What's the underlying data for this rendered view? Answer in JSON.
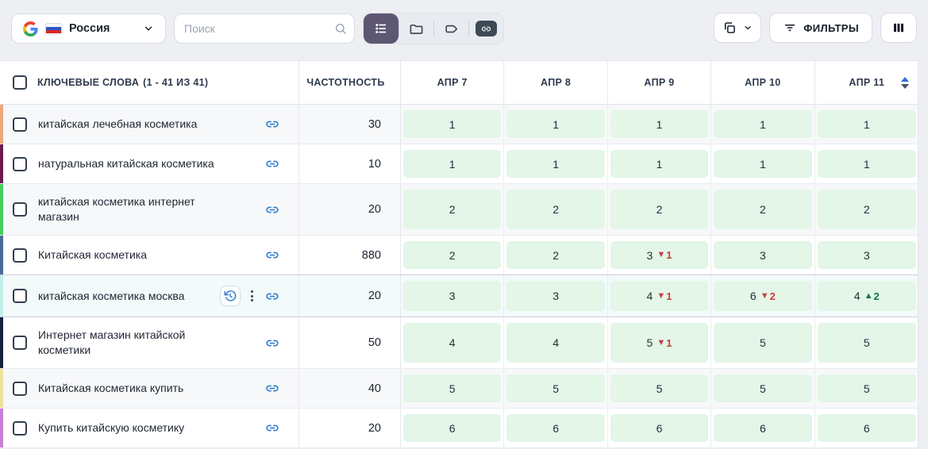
{
  "toolbar": {
    "region": {
      "label": "Россия",
      "engine": "google",
      "flag": "russia"
    },
    "search": {
      "placeholder": "Поиск"
    },
    "view_modes": [
      {
        "name": "list-view",
        "active": true
      },
      {
        "name": "folder-view",
        "active": false
      },
      {
        "name": "tag-view",
        "active": false
      },
      {
        "name": "link-view",
        "active": false
      }
    ],
    "copy_menu": {
      "icon": "copy-icon",
      "chevron": "chevron-down-icon"
    },
    "filters": {
      "label": "ФИЛЬТРЫ",
      "icon": "filter-icon"
    },
    "columns_button": {
      "icon": "columns-icon"
    }
  },
  "table": {
    "header": {
      "keywords": "КЛЮЧЕВЫЕ СЛОВА",
      "range": "(1 - 41 ИЗ 41)",
      "frequency": "ЧАСТОТНОСТЬ",
      "dates": [
        "АПР 7",
        "АПР 8",
        "АПР 9",
        "АПР 10",
        "АПР 11"
      ],
      "sort_icons": [
        "sort-up-icon",
        "sort-down-icon"
      ]
    },
    "rows": [
      {
        "keyword": "китайская лечебная косметика",
        "stripe": "#eda77c",
        "frequency": "30",
        "cells": [
          {
            "v": "1"
          },
          {
            "v": "1"
          },
          {
            "v": "1"
          },
          {
            "v": "1"
          },
          {
            "v": "1"
          }
        ]
      },
      {
        "keyword": "натуральная китайская косметика",
        "stripe": "#6d1b4f",
        "frequency": "10",
        "cells": [
          {
            "v": "1"
          },
          {
            "v": "1"
          },
          {
            "v": "1"
          },
          {
            "v": "1"
          },
          {
            "v": "1"
          }
        ]
      },
      {
        "keyword": "китайская косметика интернет магазин",
        "stripe": "#42d05e",
        "frequency": "20",
        "cells": [
          {
            "v": "2"
          },
          {
            "v": "2"
          },
          {
            "v": "2"
          },
          {
            "v": "2"
          },
          {
            "v": "2"
          }
        ]
      },
      {
        "keyword": "Китайская косметика",
        "stripe": "#4a6a96",
        "frequency": "880",
        "cells": [
          {
            "v": "2"
          },
          {
            "v": "2"
          },
          {
            "v": "3",
            "d": "1",
            "dir": "down"
          },
          {
            "v": "3"
          },
          {
            "v": "3"
          }
        ]
      },
      {
        "keyword": "китайская косметика москва",
        "stripe": "#c3efe9",
        "frequency": "20",
        "highlighted": true,
        "extra_icons": true,
        "cells": [
          {
            "v": "3"
          },
          {
            "v": "3"
          },
          {
            "v": "4",
            "d": "1",
            "dir": "down"
          },
          {
            "v": "6",
            "d": "2",
            "dir": "down"
          },
          {
            "v": "4",
            "d": "2",
            "dir": "up"
          }
        ]
      },
      {
        "keyword": "Интернет магазин китайской косметики",
        "stripe": "#16203f",
        "frequency": "50",
        "cells": [
          {
            "v": "4"
          },
          {
            "v": "4"
          },
          {
            "v": "5",
            "d": "1",
            "dir": "down"
          },
          {
            "v": "5"
          },
          {
            "v": "5"
          }
        ]
      },
      {
        "keyword": "Китайская косметика купить",
        "stripe": "#eee29b",
        "frequency": "40",
        "cells": [
          {
            "v": "5"
          },
          {
            "v": "5"
          },
          {
            "v": "5"
          },
          {
            "v": "5"
          },
          {
            "v": "5"
          }
        ]
      },
      {
        "keyword": "Купить китайскую косметику",
        "stripe": "#c87fd5",
        "frequency": "20",
        "cells": [
          {
            "v": "6"
          },
          {
            "v": "6"
          },
          {
            "v": "6"
          },
          {
            "v": "6"
          },
          {
            "v": "6"
          }
        ]
      }
    ]
  },
  "colors": {
    "segment_active": "#5d5772",
    "cell_green": "#e3f6e8",
    "delta_down": "#d03c3c",
    "delta_up": "#157347",
    "link_blue": "#2f7bd0"
  }
}
